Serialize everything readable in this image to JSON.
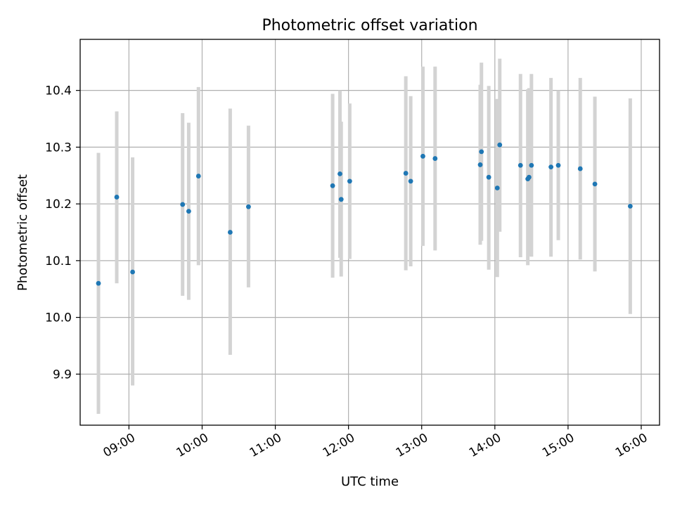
{
  "chart_data": {
    "type": "scatter",
    "title": "Photometric offset variation",
    "xlabel": "UTC time",
    "ylabel": "Photometric offset",
    "grid": true,
    "x_ticks": [
      "09:00",
      "10:00",
      "11:00",
      "12:00",
      "13:00",
      "14:00",
      "15:00",
      "16:00"
    ],
    "y_ticks": [
      "9.9",
      "10.0",
      "10.1",
      "10.2",
      "10.3",
      "10.4"
    ],
    "xlim": [
      "08:20",
      "16:15"
    ],
    "ylim": [
      9.81,
      10.49
    ],
    "marker_color": "#1f77b4",
    "errorbar_color": "#d3d3d3",
    "series": [
      {
        "points": [
          {
            "x": "08:35",
            "y": 10.06,
            "ylo": 9.83,
            "yhi": 10.29
          },
          {
            "x": "08:50",
            "y": 10.212,
            "ylo": 10.06,
            "yhi": 10.363
          },
          {
            "x": "09:03",
            "y": 10.08,
            "ylo": 9.88,
            "yhi": 10.282
          },
          {
            "x": "09:44",
            "y": 10.199,
            "ylo": 10.038,
            "yhi": 10.36
          },
          {
            "x": "09:49",
            "y": 10.187,
            "ylo": 10.031,
            "yhi": 10.343
          },
          {
            "x": "09:57",
            "y": 10.249,
            "ylo": 10.092,
            "yhi": 10.406
          },
          {
            "x": "10:23",
            "y": 10.15,
            "ylo": 9.934,
            "yhi": 10.368
          },
          {
            "x": "10:38",
            "y": 10.195,
            "ylo": 10.053,
            "yhi": 10.338
          },
          {
            "x": "11:47",
            "y": 10.232,
            "ylo": 10.07,
            "yhi": 10.394
          },
          {
            "x": "11:53",
            "y": 10.253,
            "ylo": 10.105,
            "yhi": 10.4
          },
          {
            "x": "11:54",
            "y": 10.208,
            "ylo": 10.072,
            "yhi": 10.345
          },
          {
            "x": "12:01",
            "y": 10.24,
            "ylo": 10.103,
            "yhi": 10.377
          },
          {
            "x": "12:47",
            "y": 10.254,
            "ylo": 10.083,
            "yhi": 10.425
          },
          {
            "x": "12:51",
            "y": 10.24,
            "ylo": 10.09,
            "yhi": 10.39
          },
          {
            "x": "13:01",
            "y": 10.284,
            "ylo": 10.126,
            "yhi": 10.442
          },
          {
            "x": "13:11",
            "y": 10.28,
            "ylo": 10.118,
            "yhi": 10.442
          },
          {
            "x": "13:48",
            "y": 10.269,
            "ylo": 10.128,
            "yhi": 10.41
          },
          {
            "x": "13:49",
            "y": 10.292,
            "ylo": 10.135,
            "yhi": 10.449
          },
          {
            "x": "13:55",
            "y": 10.247,
            "ylo": 10.084,
            "yhi": 10.408
          },
          {
            "x": "14:02",
            "y": 10.228,
            "ylo": 10.071,
            "yhi": 10.385
          },
          {
            "x": "14:04",
            "y": 10.304,
            "ylo": 10.151,
            "yhi": 10.456
          },
          {
            "x": "14:21",
            "y": 10.268,
            "ylo": 10.106,
            "yhi": 10.429
          },
          {
            "x": "14:27",
            "y": 10.244,
            "ylo": 10.092,
            "yhi": 10.402
          },
          {
            "x": "14:28",
            "y": 10.247,
            "ylo": 10.108,
            "yhi": 10.404
          },
          {
            "x": "14:30",
            "y": 10.268,
            "ylo": 10.107,
            "yhi": 10.429
          },
          {
            "x": "14:46",
            "y": 10.265,
            "ylo": 10.107,
            "yhi": 10.422
          },
          {
            "x": "14:52",
            "y": 10.268,
            "ylo": 10.136,
            "yhi": 10.4
          },
          {
            "x": "15:10",
            "y": 10.262,
            "ylo": 10.102,
            "yhi": 10.422
          },
          {
            "x": "15:22",
            "y": 10.235,
            "ylo": 10.081,
            "yhi": 10.389
          },
          {
            "x": "15:51",
            "y": 10.196,
            "ylo": 10.006,
            "yhi": 10.386
          }
        ]
      }
    ]
  }
}
